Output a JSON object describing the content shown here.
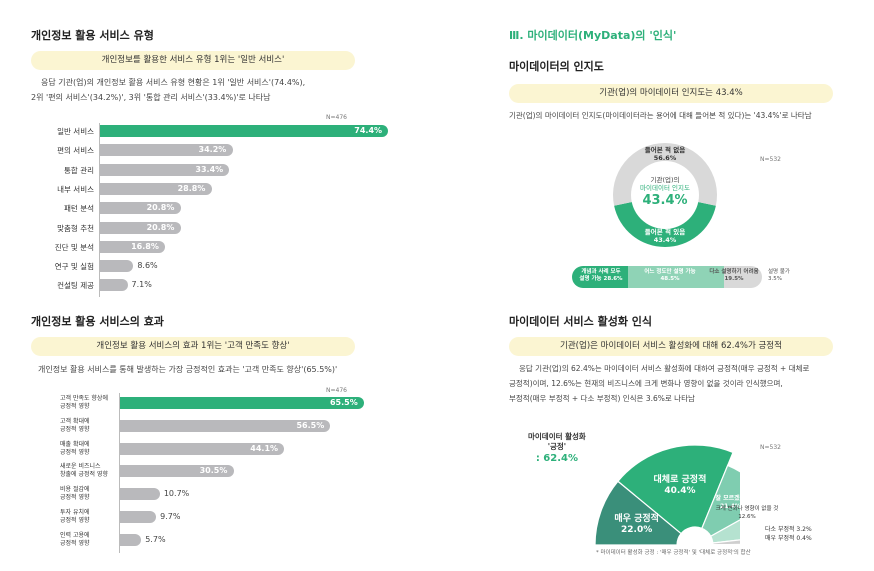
{
  "left": {
    "section1": {
      "title": "개인정보 활용 서비스 유형",
      "pill": "개인정보를 활용한 서비스 유형 1위는 '일반 서비스'",
      "body_line1": "응답 기관(업)의 개인정보 활용 서비스 유형 현황은 1위 '일반 서비스'(74.4%),",
      "body_line2": "2위 '편의 서비스'(34.2%)', 3위 '통합 관리 서비스'(33.4%)'로 나타남",
      "n_label": "N=476"
    },
    "section2": {
      "title": "개인정보 활용 서비스의 효과",
      "pill": "개인정보 활용 서비스의 효과 1위는 '고객 만족도 향상'",
      "body_line1": "개인정보 활용 서비스를 통해 발생하는 가장 긍정적인 효과는 '고객 만족도 향상'(65.5%)'",
      "n_label": "N=476"
    }
  },
  "right": {
    "section_heading": "Ⅲ. 마이데이터(MyData)의 '인식'",
    "section1": {
      "title": "마이데이터의 인지도",
      "pill": "기관(업)의 마이데이터 인지도는 43.4%",
      "body_line1": "기관(업)의 마이데이터 인지도(마이데이터라는 용어에 대해 들어본 적 있다)는 '43.4%'로 나타남",
      "n_label": "N=532",
      "donut_center_l1": "기관(업)의",
      "donut_center_l2": "마이데이터 인지도",
      "donut_center_value": "43.4%",
      "slice_top_l1": "들어본 적 없음",
      "slice_top_l2": "56.6%",
      "slice_bottom_l1": "들어본 적 있음",
      "slice_bottom_l2": "43.4%",
      "stack_seg1_l1": "개념과 사례 모두",
      "stack_seg1_l2": "설명 가능 28.6%",
      "stack_seg2_l1": "어느 정도만 설명 가능",
      "stack_seg2_l2": "48.5%",
      "stack_seg3_l1": "다소 설명하기 어려움",
      "stack_seg3_l2": "19.5%",
      "stack_seg4_l1": "설명 불가",
      "stack_seg4_l2": "3.5%"
    },
    "section2": {
      "title": "마이데이터 서비스 활성화 인식",
      "pill": "기관(업)은 마이데이터 서비스 활성화에 대해 62.4%가 긍정적",
      "body_line1": "응답 기관(업)의 62.4%는 마이데이터 서비스 활성화에 대하여 긍정적(매우 긍정적 + 대체로",
      "body_line2": "긍정적)이며, 12.6%는 현재의 비즈니스에 크게 변화나 영향이 없을 것이라 인식했으며,",
      "body_line3": "부정적(매우 부정적 + 다소 부정적) 인식은 3.6%로 나타남",
      "n_label": "N=532",
      "callout_l1": "마이데이터 활성화",
      "callout_l2": "'긍정'",
      "callout_value": ": 62.4%",
      "footnote": "* 마이데이터 활성화 긍정 : '매우 긍정적' 및 '대체로 긍정적'의 합산"
    }
  },
  "chart_data": [
    {
      "type": "bar",
      "orientation": "horizontal",
      "title": "개인정보 활용 서비스 유형",
      "categories": [
        "일반 서비스",
        "편의 서비스",
        "통합 관리",
        "내부 서비스",
        "패턴 분석",
        "맞춤형 추천",
        "진단 및 분석",
        "연구 및 실험",
        "컨설팅 제공"
      ],
      "values": [
        74.4,
        34.2,
        33.4,
        28.8,
        20.8,
        20.8,
        16.8,
        8.6,
        7.1
      ],
      "value_labels": [
        "74.4%",
        "34.2%",
        "33.4%",
        "28.8%",
        "20.8%",
        "20.8%",
        "16.8%",
        "8.6%",
        "7.1%"
      ],
      "highlight_color": "#2db07a",
      "bar_color": "#b9b9bc",
      "xlim": [
        0,
        80
      ]
    },
    {
      "type": "bar",
      "orientation": "horizontal",
      "title": "개인정보 활용 서비스의 효과",
      "categories": [
        "고객 만족도 향상에 긍정적 영향",
        "고객 확대에 긍정적 영향",
        "매출 확대에 긍정적 영향",
        "새로운 비즈니스 창출에 긍정적 영향",
        "비용 절감에 긍정적 영향",
        "투자 유치에 긍정적 영향",
        "인력 고용에 긍정적 영향"
      ],
      "category_lines": [
        [
          "고객 만족도 향상에",
          "긍정적 영향"
        ],
        [
          "고객 확대에",
          "긍정적 영향"
        ],
        [
          "매출 확대에",
          "긍정적 영향"
        ],
        [
          "새로운 비즈니스",
          "창출에 긍정적 영향"
        ],
        [
          "비용 절감에",
          "긍정적 영향"
        ],
        [
          "투자 유치에",
          "긍정적 영향"
        ],
        [
          "인력 고용에",
          "긍정적 영향"
        ]
      ],
      "values": [
        65.5,
        56.5,
        44.1,
        30.5,
        10.7,
        9.7,
        5.7
      ],
      "value_labels": [
        "65.5%",
        "56.5%",
        "44.1%",
        "30.5%",
        "10.7%",
        "9.7%",
        "5.7%"
      ],
      "highlight_color": "#2db07a",
      "bar_color": "#b9b9bc",
      "xlim": [
        0,
        80
      ]
    },
    {
      "type": "pie",
      "subtype": "donut",
      "title": "마이데이터의 인지도",
      "labels": [
        "들어본 적 없음",
        "들어본 적 있음"
      ],
      "values": [
        56.6,
        43.4
      ],
      "colors": [
        "#d9d9d9",
        "#2db07a"
      ]
    },
    {
      "type": "bar",
      "subtype": "stacked-100",
      "labels": [
        "개념과 사례 모두 설명 가능",
        "어느 정도만 설명 가능",
        "다소 설명하기 어려움",
        "설명 불가"
      ],
      "values": [
        28.6,
        48.5,
        19.5,
        3.5
      ],
      "colors": [
        "#2db07a",
        "#8fd3b6",
        "#d9d9d9",
        "#eeeeee"
      ]
    },
    {
      "type": "pie",
      "subtype": "semicircle",
      "title": "마이데이터 서비스 활성화 인식",
      "labels": [
        "매우 긍정적",
        "대체로 긍정적",
        "잘 모르겠음",
        "크게 변화나 영향이 없을 것",
        "다소 부정적",
        "매우 부정적"
      ],
      "values": [
        22.0,
        40.4,
        21.4,
        12.6,
        3.2,
        0.4
      ],
      "value_labels": [
        "22.0%",
        "40.4%",
        "21.4%",
        "12.6%",
        "3.2%",
        "0.4%"
      ],
      "colors": [
        "#3a8f7a",
        "#2db07a",
        "#7fcdb0",
        "#b5e2d0",
        "#cfcfcf",
        "#9e9e9e"
      ]
    }
  ]
}
